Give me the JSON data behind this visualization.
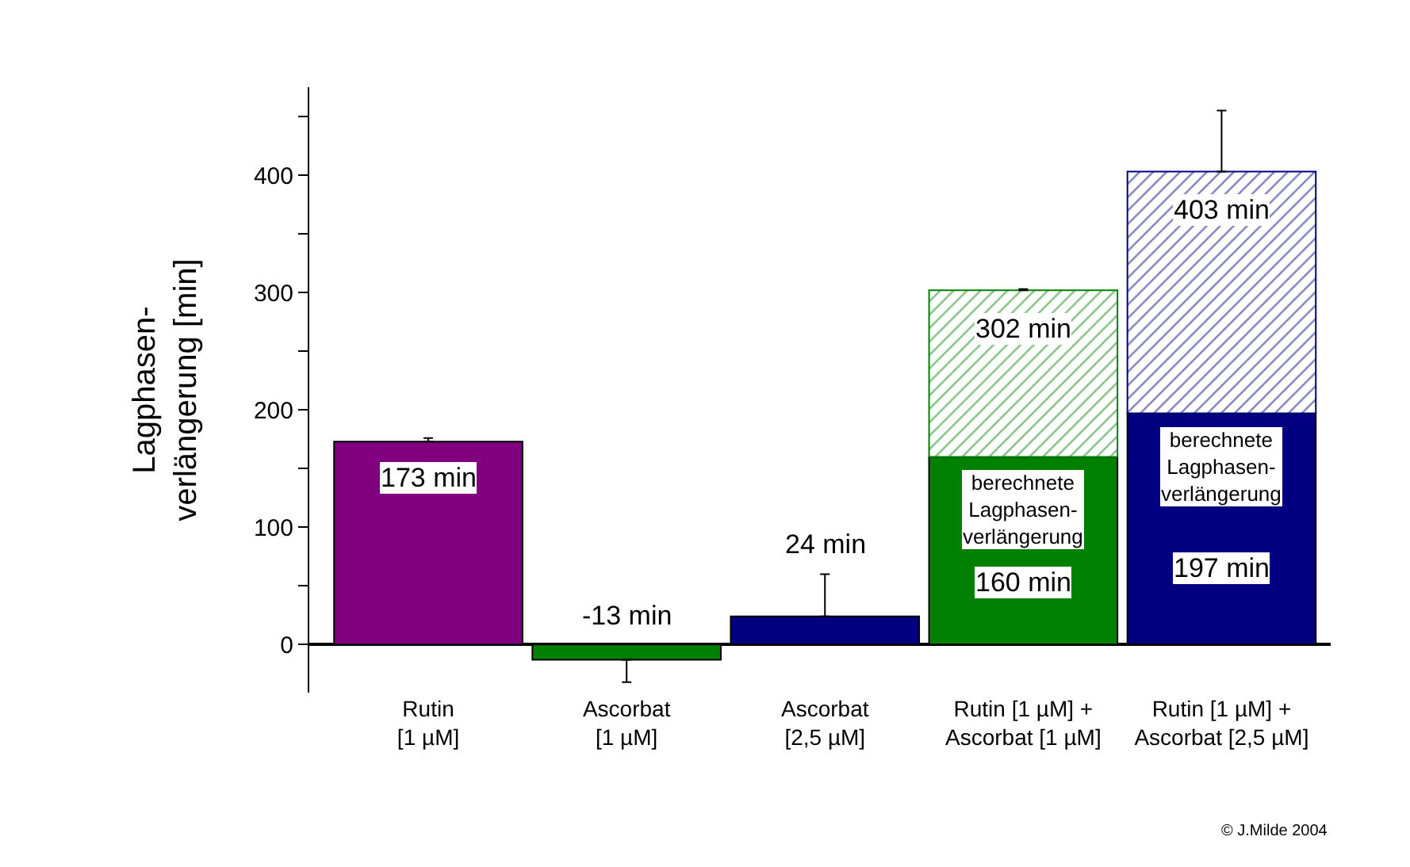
{
  "chart_data": {
    "type": "bar",
    "stacked": true,
    "categories": [
      "Rutin\n[1 µM]",
      "Ascorbat\n[1 µM]",
      "Ascorbat\n[2,5 µM]",
      "Rutin [1 µM] +\nAscorbat [1 µM]",
      "Rutin [1 µM] +\nAscorbat [2,5 µM]"
    ],
    "ylabel": "Lagphasen-\nverlängerung [min]",
    "series": [
      {
        "colors": [
          "#800080",
          "#008000",
          "#000080",
          "#008000",
          "#000080"
        ],
        "values": [
          173,
          -13,
          24,
          160,
          197
        ],
        "value_labels": [
          "173 min",
          "-13 min",
          "24 min",
          "160 min",
          "197 min"
        ],
        "errors": [
          [
            173,
            176
          ],
          [
            -32,
            -13
          ],
          [
            24,
            60
          ],
          null,
          null
        ]
      },
      {
        "colors": [
          null,
          null,
          null,
          "#008000",
          "#000080"
        ],
        "values": [
          null,
          null,
          null,
          142,
          206
        ],
        "errors": [
          null,
          null,
          null,
          [
            302,
            303
          ],
          [
            403,
            455
          ]
        ]
      }
    ],
    "totals": [
      null,
      null,
      null,
      "302 min",
      "403 min"
    ],
    "annotations": [
      "berechnete\nLagphasen-\nverlängerung",
      "berechnete\nLagphasen-\nverlängerung",
      "© J.Milde 2004"
    ],
    "ylim": [
      -41,
      475
    ],
    "yticks": [
      0,
      {
        "value": 50,
        "label": null
      },
      100,
      {
        "value": 150,
        "label": null
      },
      200,
      {
        "value": 250,
        "label": null
      },
      300,
      {
        "value": 350,
        "label": null
      },
      400,
      {
        "value": 450,
        "label": null
      }
    ]
  }
}
